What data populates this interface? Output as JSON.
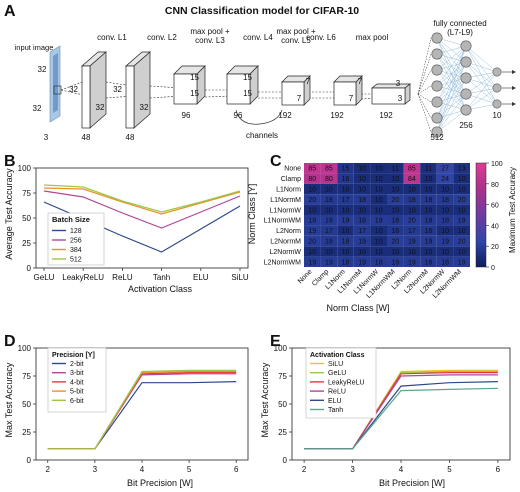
{
  "panels": {
    "A": {
      "letter": "A",
      "title": "CNN Classification model for CIFAR-10",
      "input_label": "input image",
      "input_dims": [
        "32",
        "32",
        "3"
      ],
      "layers": [
        {
          "label": "conv. L1",
          "d1": "32",
          "d2": "32",
          "depth": "48"
        },
        {
          "label": "conv. L2",
          "d1": "32",
          "d2": "32",
          "depth": "48"
        },
        {
          "label": "max pool +\nconv. L3",
          "d1": "15",
          "d2": "15",
          "depth": "96"
        },
        {
          "label": "conv. L4",
          "d1": "15",
          "d2": "15",
          "depth": "96"
        },
        {
          "label": "max pool +\nconv. L5",
          "d1": "7",
          "d2": "7",
          "depth": "192"
        },
        {
          "label": "conv. L6",
          "d1": "7",
          "d2": "7",
          "depth": "192"
        },
        {
          "label": "max pool",
          "d1": "3",
          "d2": "3",
          "depth": "192"
        }
      ],
      "channels_label": "channels",
      "fc_label": "fully connected\n(L7-L9)",
      "fc_sizes": [
        "512",
        "256",
        "10"
      ]
    },
    "B": {
      "letter": "B",
      "legend_title": "Batch Size",
      "chart_data": {
        "type": "line",
        "xlabel": "Activation Class",
        "ylabel": "Average Test Accuracy",
        "categories": [
          "GeLU",
          "LeakyReLU",
          "ReLU",
          "Tanh",
          "ELU",
          "SiLU"
        ],
        "ylim": [
          0,
          100
        ],
        "yticks": [
          0,
          25,
          50,
          75,
          100
        ],
        "series": [
          {
            "name": "128",
            "color": "#2b4a8a",
            "values": [
              66,
              49,
              32,
              16,
              39,
              62
            ]
          },
          {
            "name": "256",
            "color": "#b0479a",
            "values": [
              77,
              71,
              55,
              40,
              56,
              72
            ]
          },
          {
            "name": "384",
            "color": "#e8922a",
            "values": [
              80,
              79,
              66,
              54,
              65,
              76
            ]
          },
          {
            "name": "512",
            "color": "#9cc84a",
            "values": [
              83,
              81,
              67,
              56,
              66,
              77
            ]
          }
        ]
      }
    },
    "C": {
      "letter": "C",
      "chart_data": {
        "type": "heatmap",
        "xlabel": "Norm Class [W]",
        "ylabel": "Norm Class [Y]",
        "colorbar_label": "Maximum Test Accuracy",
        "colorbar_ticks": [
          "0",
          "20",
          "40",
          "60",
          "80",
          "100"
        ],
        "cols": [
          "None",
          "Clamp",
          "L1Norm",
          "L1NormM",
          "L1NormW",
          "L1NormWM",
          "L2Norm",
          "L2NormM",
          "L2NormW",
          "L2NormWM"
        ],
        "rows": [
          "None",
          "Clamp",
          "L1Norm",
          "L1NormM",
          "L1NormW",
          "L1NormWM",
          "L2Norm",
          "L2NormM",
          "L2NormW",
          "L2NormWM"
        ],
        "values": [
          [
            85,
            85,
            15,
            10,
            10,
            11,
            85,
            11,
            27,
            13
          ],
          [
            80,
            80,
            16,
            10,
            10,
            10,
            84,
            10,
            24,
            10
          ],
          [
            10,
            10,
            10,
            10,
            10,
            10,
            10,
            10,
            10,
            10
          ],
          [
            20,
            18,
            17,
            18,
            10,
            20,
            18,
            18,
            18,
            20
          ],
          [
            10,
            10,
            10,
            10,
            10,
            10,
            10,
            10,
            10,
            10
          ],
          [
            19,
            19,
            19,
            18,
            19,
            18,
            20,
            18,
            18,
            19
          ],
          [
            19,
            17,
            10,
            17,
            10,
            16,
            17,
            16,
            10,
            10
          ],
          [
            20,
            18,
            18,
            19,
            10,
            20,
            19,
            19,
            19,
            20
          ],
          [
            10,
            10,
            10,
            10,
            10,
            10,
            10,
            10,
            10,
            10
          ],
          [
            19,
            19,
            18,
            19,
            18,
            19,
            19,
            18,
            18,
            19
          ]
        ]
      }
    },
    "D": {
      "letter": "D",
      "legend_title": "Precision [Y]",
      "chart_data": {
        "type": "line",
        "xlabel": "Bit Precision [W]",
        "ylabel": "Max Test Accuracy",
        "x": [
          2,
          3,
          4,
          5,
          6
        ],
        "xlim": [
          1.75,
          6.25
        ],
        "ylim": [
          0,
          100
        ],
        "yticks": [
          0,
          25,
          50,
          75,
          100
        ],
        "series": [
          {
            "name": "2-bit",
            "color": "#2b4a8a",
            "values": [
              10,
              10,
              69,
              69,
              70
            ]
          },
          {
            "name": "3-bit",
            "color": "#b0479a",
            "values": [
              10,
              10,
              76,
              77,
              77
            ]
          },
          {
            "name": "4-bit",
            "color": "#e8363a",
            "values": [
              10,
              10,
              77,
              78,
              78
            ]
          },
          {
            "name": "5-bit",
            "color": "#e8922a",
            "values": [
              10,
              10,
              78,
              79,
              79
            ]
          },
          {
            "name": "6-bit",
            "color": "#9cc84a",
            "values": [
              10,
              10,
              79,
              80,
              80
            ]
          }
        ]
      }
    },
    "E": {
      "letter": "E",
      "legend_title": "Activation Class",
      "chart_data": {
        "type": "line",
        "xlabel": "Bit Precision [W]",
        "ylabel": "Max Test Accuracy",
        "x": [
          2,
          3,
          4,
          5,
          6
        ],
        "xlim": [
          1.75,
          6.25
        ],
        "ylim": [
          0,
          100
        ],
        "yticks": [
          0,
          25,
          50,
          75,
          100
        ],
        "series": [
          {
            "name": "SiLU",
            "color": "#e8c62a",
            "values": [
              10,
              10,
              79,
              80,
              80
            ]
          },
          {
            "name": "GeLU",
            "color": "#9cc84a",
            "values": [
              10,
              10,
              78,
              79,
              79
            ]
          },
          {
            "name": "LeakyReLU",
            "color": "#e8363a",
            "values": [
              10,
              10,
              77,
              78,
              78
            ]
          },
          {
            "name": "ReLU",
            "color": "#b0479a",
            "values": [
              10,
              10,
              75,
              76,
              76
            ]
          },
          {
            "name": "ELU",
            "color": "#2b4a8a",
            "values": [
              10,
              10,
              66,
              69,
              70
            ]
          },
          {
            "name": "Tanh",
            "color": "#5aa88a",
            "values": [
              10,
              10,
              62,
              63,
              64
            ]
          }
        ]
      }
    }
  }
}
